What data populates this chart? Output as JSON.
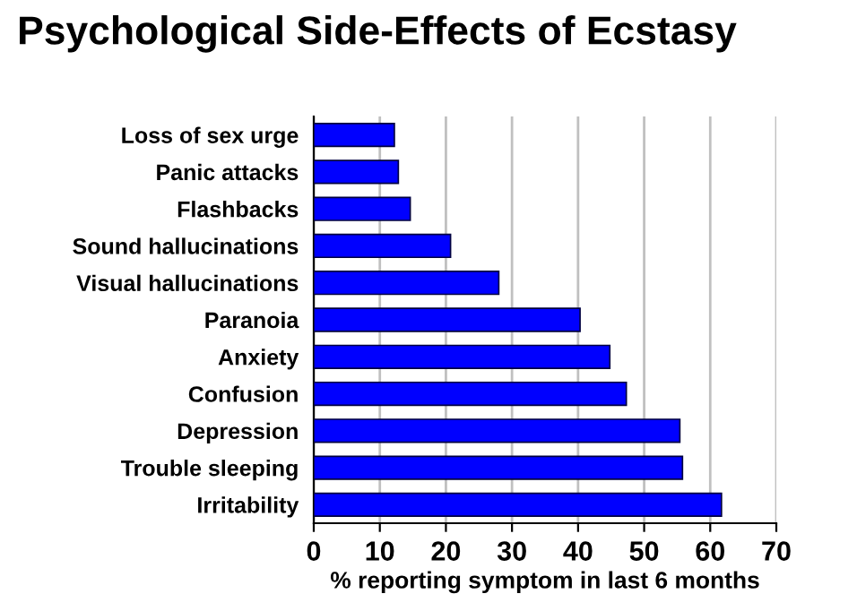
{
  "chart_data": {
    "type": "bar",
    "orientation": "horizontal",
    "title": "Psychological Side-Effects of Ecstasy",
    "xlabel": "% reporting symptom in last 6 months",
    "categories": [
      "Loss of sex urge",
      "Panic attacks",
      "Flashbacks",
      "Sound hallucinations",
      "Visual hallucinations",
      "Paranoia",
      "Anxiety",
      "Confusion",
      "Depression",
      "Trouble sleeping",
      "Irritability"
    ],
    "values": [
      12.2,
      12.8,
      14.6,
      20.7,
      28,
      40.3,
      44.8,
      47.3,
      55.4,
      55.8,
      61.7
    ],
    "color": "#0000ff",
    "xlim": [
      0,
      70
    ],
    "xticks": [
      0,
      10,
      20,
      30,
      40,
      50,
      60,
      70
    ],
    "grid": "x",
    "legend": false
  }
}
